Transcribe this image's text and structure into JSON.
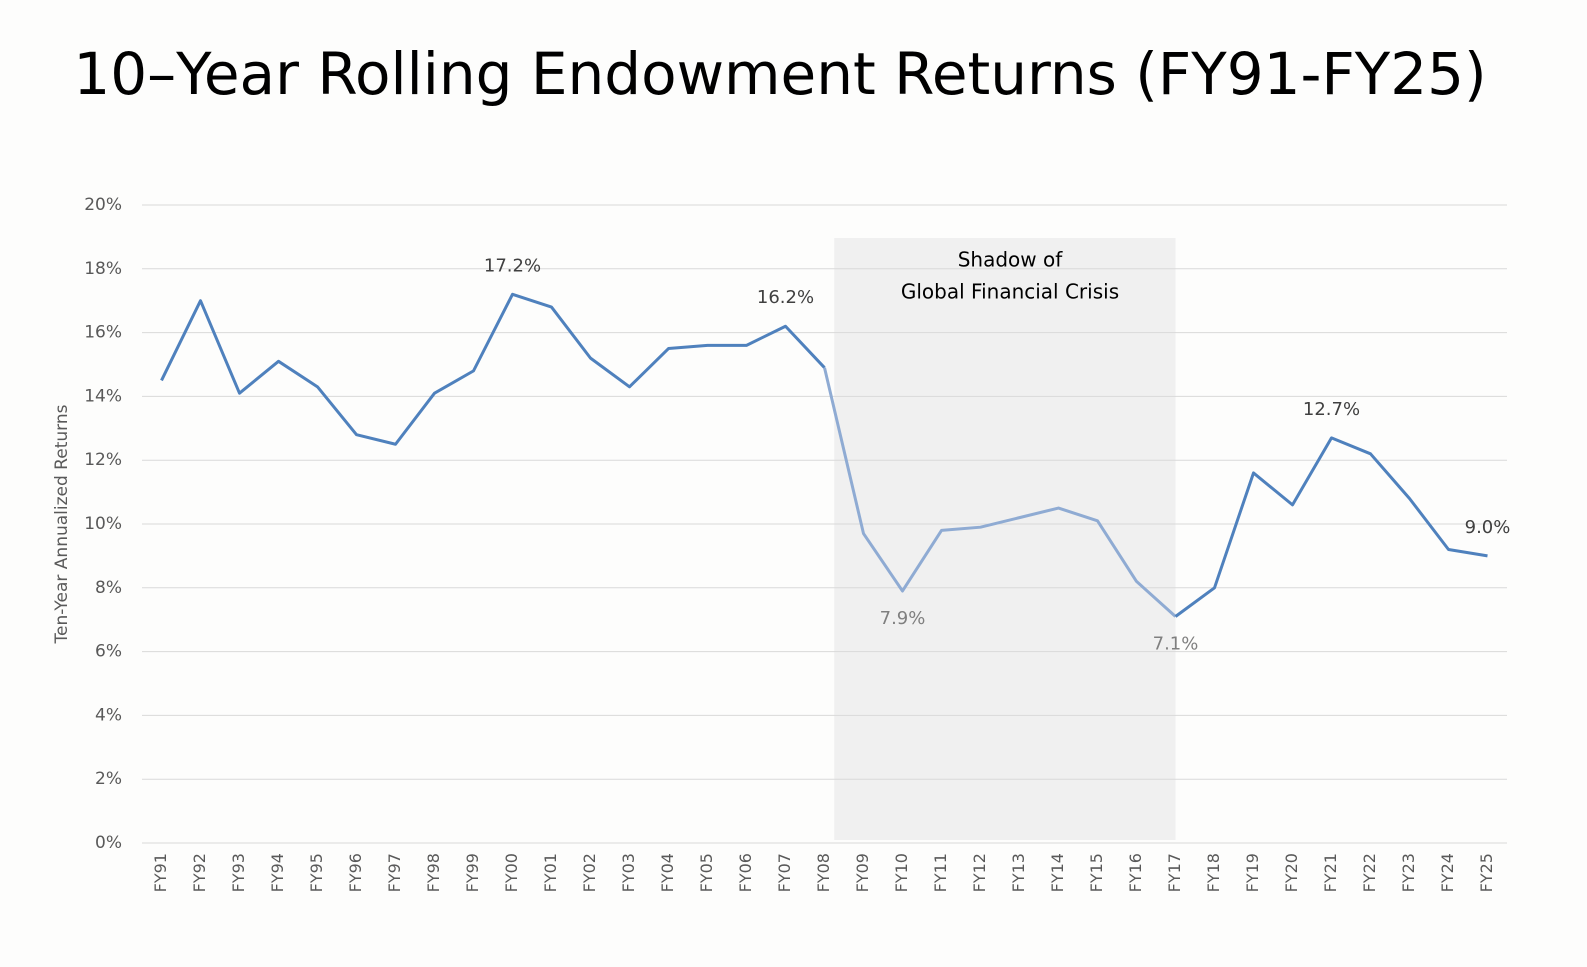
{
  "chart_data": {
    "type": "line",
    "title": "10–Year Rolling Endowment Returns (FY91-FY25)",
    "y_label": "Ten-Year Annualized Returns",
    "categories": [
      "FY91",
      "FY92",
      "FY93",
      "FY94",
      "FY95",
      "FY96",
      "FY97",
      "FY98",
      "FY99",
      "FY00",
      "FY01",
      "FY02",
      "FY03",
      "FY04",
      "FY05",
      "FY06",
      "FY07",
      "FY08",
      "FY09",
      "FY10",
      "FY11",
      "FY12",
      "FY13",
      "FY14",
      "FY15",
      "FY16",
      "FY17",
      "FY18",
      "FY19",
      "FY20",
      "FY21",
      "FY22",
      "FY23",
      "FY24",
      "FY25"
    ],
    "values": [
      14.5,
      17.0,
      14.1,
      15.1,
      14.3,
      12.8,
      12.5,
      14.1,
      14.8,
      17.2,
      16.8,
      15.2,
      14.3,
      15.5,
      15.6,
      15.6,
      16.2,
      14.9,
      9.7,
      7.9,
      9.8,
      9.9,
      10.2,
      10.5,
      10.1,
      8.2,
      7.1,
      8.0,
      11.6,
      10.6,
      12.7,
      12.2,
      10.8,
      9.2,
      9.0
    ],
    "value_labels": [
      null,
      null,
      null,
      null,
      null,
      null,
      null,
      null,
      null,
      "17.2%",
      null,
      null,
      null,
      null,
      null,
      null,
      "16.2%",
      null,
      null,
      "7.9%",
      null,
      null,
      null,
      null,
      null,
      null,
      "7.1%",
      null,
      null,
      null,
      "12.7%",
      null,
      null,
      null,
      "9.0%"
    ],
    "color": "#4f81bd",
    "ylim": [
      0,
      20
    ],
    "yticks": [
      {
        "value": 0,
        "label": "0%"
      },
      {
        "value": 2,
        "label": "2%"
      },
      {
        "value": 4,
        "label": "4%"
      },
      {
        "value": 6,
        "label": "6%"
      },
      {
        "value": 8,
        "label": "8%"
      },
      {
        "value": 10,
        "label": "10%"
      },
      {
        "value": 12,
        "label": "12%"
      },
      {
        "value": 14,
        "label": "14%"
      },
      {
        "value": 16,
        "label": "16%"
      },
      {
        "value": 18,
        "label": "18%"
      },
      {
        "value": 20,
        "label": "20%"
      }
    ],
    "grid": true,
    "highlight": {
      "from": "FY08",
      "to": "FY17",
      "label": [
        "Shadow of",
        "Global Financial Crisis"
      ],
      "color": "#f0f0f0",
      "line_color": "#8fabd3"
    }
  }
}
